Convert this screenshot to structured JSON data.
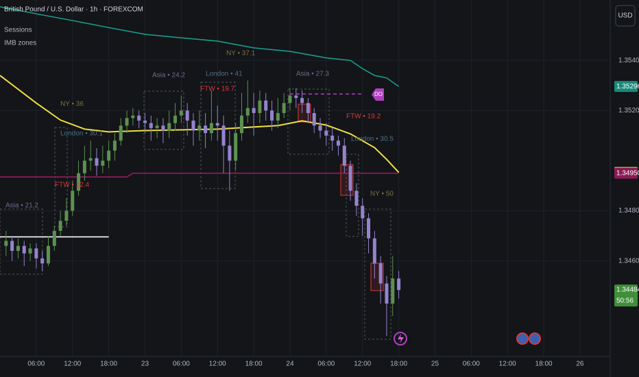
{
  "chart_data": {
    "type": "candlestick",
    "title": "British Pound / U.S. Dollar · 1h · FOREXCOM",
    "indicators": [
      "Sessions",
      "IMB zones"
    ],
    "currency": "USD",
    "countdown": "50:56",
    "x": [
      1,
      2,
      3,
      4,
      5,
      6,
      7,
      8,
      9,
      10,
      11,
      12,
      13,
      14,
      15,
      16,
      17,
      18,
      19,
      20,
      21,
      22,
      23,
      24,
      25,
      26,
      27,
      28,
      29,
      30,
      31,
      32,
      33,
      34,
      35,
      36,
      37,
      38,
      39,
      40,
      41,
      42,
      43,
      44,
      45,
      46,
      47,
      48,
      49,
      50,
      51,
      52,
      53,
      54,
      55,
      56,
      57,
      58,
      59,
      60,
      61,
      62,
      63,
      64,
      65,
      66
    ],
    "open": [
      1.3466,
      1.3468,
      1.3464,
      1.3466,
      1.3463,
      1.3465,
      1.3461,
      1.3459,
      1.3466,
      1.3472,
      1.3476,
      1.348,
      1.3488,
      1.3495,
      1.35,
      1.3501,
      1.3498,
      1.35,
      1.3504,
      1.3508,
      1.3514,
      1.3517,
      1.3518,
      1.3516,
      1.3515,
      1.3513,
      1.3514,
      1.3512,
      1.3515,
      1.3518,
      1.352,
      1.3516,
      1.3512,
      1.3514,
      1.3511,
      1.3515,
      1.3514,
      1.3506,
      1.35,
      1.3511,
      1.3518,
      1.3521,
      1.3519,
      1.3524,
      1.352,
      1.3516,
      1.3519,
      1.3523,
      1.3526,
      1.3525,
      1.3523,
      1.3519,
      1.3514,
      1.3512,
      1.351,
      1.3508,
      1.3506,
      1.3498,
      1.3488,
      1.3482,
      1.3477,
      1.3469,
      1.3459,
      1.3451,
      1.3443,
      1.3453
    ],
    "high": [
      1.3472,
      1.347,
      1.3469,
      1.3468,
      1.3467,
      1.3467,
      1.3464,
      1.347,
      1.3474,
      1.348,
      1.3485,
      1.3492,
      1.35,
      1.3506,
      1.3508,
      1.3505,
      1.3506,
      1.3508,
      1.3511,
      1.3517,
      1.352,
      1.3521,
      1.352,
      1.3519,
      1.3518,
      1.3517,
      1.3517,
      1.352,
      1.3523,
      1.3526,
      1.3523,
      1.3519,
      1.352,
      1.3519,
      1.3528,
      1.3522,
      1.3518,
      1.3512,
      1.3515,
      1.3527,
      1.3532,
      1.3527,
      1.3528,
      1.3527,
      1.3524,
      1.3525,
      1.3527,
      1.3529,
      1.3529,
      1.3528,
      1.3525,
      1.3521,
      1.3517,
      1.3515,
      1.3513,
      1.351,
      1.3509,
      1.35,
      1.3491,
      1.3485,
      1.3479,
      1.3472,
      1.3462,
      1.3454,
      1.3462,
      1.3456
    ],
    "low": [
      1.3462,
      1.346,
      1.3461,
      1.3458,
      1.346,
      1.3457,
      1.3456,
      1.3458,
      1.3464,
      1.347,
      1.3474,
      1.3478,
      1.3486,
      1.3492,
      1.3496,
      1.3494,
      1.3495,
      1.3497,
      1.35,
      1.3506,
      1.3511,
      1.3514,
      1.3513,
      1.3511,
      1.3508,
      1.3509,
      1.3507,
      1.3509,
      1.3512,
      1.3515,
      1.351,
      1.3506,
      1.3508,
      1.3505,
      1.3508,
      1.3508,
      1.3495,
      1.3488,
      1.3496,
      1.3508,
      1.3515,
      1.351,
      1.3515,
      1.3516,
      1.3512,
      1.3513,
      1.3517,
      1.352,
      1.3521,
      1.3519,
      1.3515,
      1.3511,
      1.3509,
      1.3506,
      1.3504,
      1.3502,
      1.3495,
      1.3484,
      1.3478,
      1.347,
      1.3463,
      1.3453,
      1.3443,
      1.343,
      1.3438,
      1.3445
    ],
    "close": [
      1.3468,
      1.3464,
      1.3466,
      1.3463,
      1.3465,
      1.3461,
      1.3459,
      1.3466,
      1.3472,
      1.3476,
      1.348,
      1.3488,
      1.3495,
      1.35,
      1.3501,
      1.3498,
      1.35,
      1.3504,
      1.3508,
      1.3514,
      1.3517,
      1.3518,
      1.3516,
      1.3515,
      1.3513,
      1.3514,
      1.3512,
      1.3515,
      1.3518,
      1.352,
      1.3516,
      1.3512,
      1.3514,
      1.3511,
      1.3515,
      1.3514,
      1.3506,
      1.35,
      1.3511,
      1.3518,
      1.3521,
      1.3519,
      1.3524,
      1.352,
      1.3516,
      1.3519,
      1.3523,
      1.3526,
      1.3525,
      1.3523,
      1.3519,
      1.3514,
      1.3512,
      1.351,
      1.3508,
      1.3506,
      1.3498,
      1.3488,
      1.3482,
      1.3477,
      1.3469,
      1.3459,
      1.3451,
      1.3443,
      1.3453,
      1.34484
    ],
    "up_color": "#5d9150",
    "down_color": "#9583cf",
    "lines": [
      {
        "color": "#1a9a8a",
        "x": [
          0,
          6,
          12,
          18,
          24,
          30,
          36,
          42,
          48,
          54,
          58,
          60,
          62,
          64,
          66
        ],
        "values": [
          1.35614,
          1.35586,
          1.35559,
          1.35531,
          1.35504,
          1.3549,
          1.35477,
          1.3545,
          1.35436,
          1.3541,
          1.354,
          1.35367,
          1.3534,
          1.3533,
          1.35296
        ]
      },
      {
        "color": "#f0e040",
        "x": [
          0,
          6,
          10,
          14,
          18,
          24,
          36,
          46,
          50,
          54,
          58,
          62,
          64,
          66
        ],
        "values": [
          1.3534,
          1.3523,
          1.35162,
          1.35126,
          1.35115,
          1.3512,
          1.35126,
          1.3514,
          1.35159,
          1.35142,
          1.35107,
          1.35052,
          1.35005,
          1.34953
        ]
      },
      {
        "color": "#9c1a5c",
        "x": [
          0,
          21,
          22,
          66
        ],
        "values": [
          1.34935,
          1.34935,
          1.3495,
          1.3495
        ]
      },
      {
        "color": "#ffffff",
        "x": [
          0,
          18
        ],
        "values": [
          1.34696,
          1.34696
        ]
      },
      {
        "color": "#b040c0",
        "dashed": true,
        "x": [
          48,
          60
        ],
        "values": [
          1.35266,
          1.35266
        ]
      }
    ],
    "xlim": [
      0,
      101
    ],
    "ylim": [
      1.34219,
      1.35641
    ],
    "xticks": [
      {
        "value": 6,
        "label": "06:00"
      },
      {
        "value": 12,
        "label": "12:00"
      },
      {
        "value": 18,
        "label": "18:00"
      },
      {
        "value": 24,
        "label": "23"
      },
      {
        "value": 30,
        "label": "06:00"
      },
      {
        "value": 36,
        "label": "12:00"
      },
      {
        "value": 42,
        "label": "18:00"
      },
      {
        "value": 48,
        "label": "24"
      },
      {
        "value": 54,
        "label": "06:00"
      },
      {
        "value": 60,
        "label": "12:00"
      },
      {
        "value": 66,
        "label": "18:00"
      },
      {
        "value": 72,
        "label": "25"
      },
      {
        "value": 78,
        "label": "06:00"
      },
      {
        "value": 84,
        "label": "12:00"
      },
      {
        "value": 90,
        "label": "18:00"
      },
      {
        "value": 96,
        "label": "26"
      }
    ],
    "yticks": [
      {
        "value": 1.354,
        "label": "1.35400"
      },
      {
        "value": 1.352,
        "label": "1.35200"
      },
      {
        "value": 1.348,
        "label": "1.34800"
      },
      {
        "value": 1.346,
        "label": "1.34600"
      }
    ],
    "price_labels": [
      {
        "value": 1.35296,
        "label": "1.35296",
        "color": "#1a8a7a"
      },
      {
        "value": 1.34953,
        "label": "1.34953",
        "color": "#f0e040"
      },
      {
        "value": 1.3495,
        "label": "1.34950",
        "color": "#8c1a54"
      },
      {
        "value": 1.34484,
        "label": "1.34484",
        "color": "#3f8f3a"
      }
    ],
    "annotations": [
      {
        "text": "Asia • 21.2",
        "color": "#6c6a8c"
      },
      {
        "text": "London • 30.1",
        "color": "#4f6f88"
      },
      {
        "text": "NY • 36",
        "color": "#7a7242"
      },
      {
        "text": "FTW • 12.4",
        "color": "#d8393b"
      },
      {
        "text": "Asia • 24.2",
        "color": "#6c6a8c"
      },
      {
        "text": "London • 41",
        "color": "#4f6f88"
      },
      {
        "text": "FTW • 19.7",
        "color": "#d8393b"
      },
      {
        "text": "NY • 37.1",
        "color": "#7a7242"
      },
      {
        "text": "Asia • 27.3",
        "color": "#6c6a8c"
      },
      {
        "text": "FTW • 19.2",
        "color": "#d8393b"
      },
      {
        "text": "London • 30.5",
        "color": "#4f6f88"
      },
      {
        "text": "NY • 50",
        "color": "#7a7242"
      },
      {
        "text": "DO",
        "color": "#ffffff"
      }
    ],
    "grid": true
  }
}
